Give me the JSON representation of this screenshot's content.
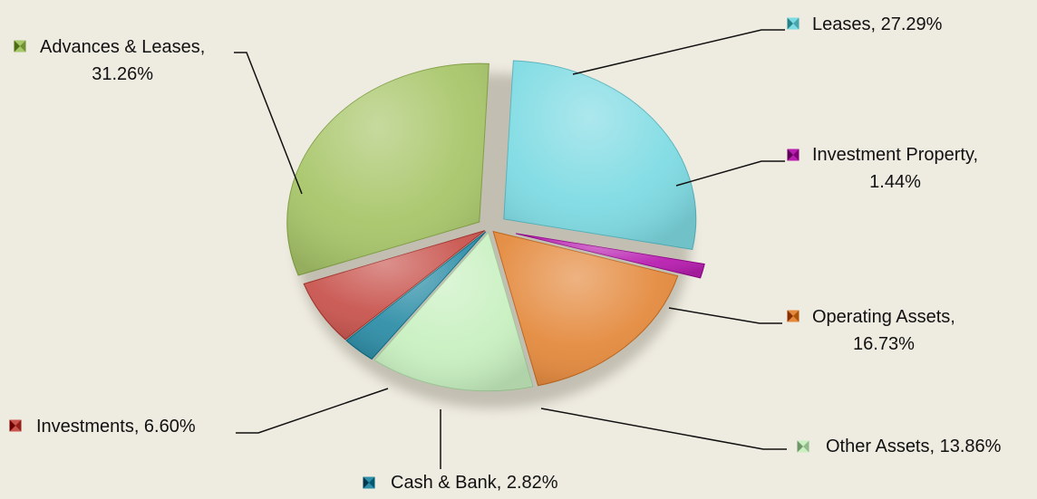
{
  "chart_data": {
    "type": "pie",
    "title": "",
    "slices": [
      {
        "label": "Leases",
        "value": 27.29,
        "display": "Leases, 27.29%",
        "color": "#7fdbe3"
      },
      {
        "label": "Investment Property",
        "value": 1.44,
        "display": "Investment Property, 1.44%",
        "color": "#b81fb0"
      },
      {
        "label": "Operating Assets",
        "value": 16.73,
        "display": "Operating Assets, 16.73%",
        "color": "#e48a3e"
      },
      {
        "label": "Other Assets",
        "value": 13.86,
        "display": "Other Assets, 13.86%",
        "color": "#c8f0c0"
      },
      {
        "label": "Cash & Bank",
        "value": 2.82,
        "display": "Cash & Bank, 2.82%",
        "color": "#2f8fa8"
      },
      {
        "label": "Investments",
        "value": 6.6,
        "display": "Investments, 6.60%",
        "color": "#c9554f"
      },
      {
        "label": "Advances & Leases",
        "value": 31.26,
        "display": "Advances & Leases, 31.26%",
        "color": "#a8c66a"
      }
    ],
    "legend": "none",
    "data_labels": "outside with leader lines"
  }
}
